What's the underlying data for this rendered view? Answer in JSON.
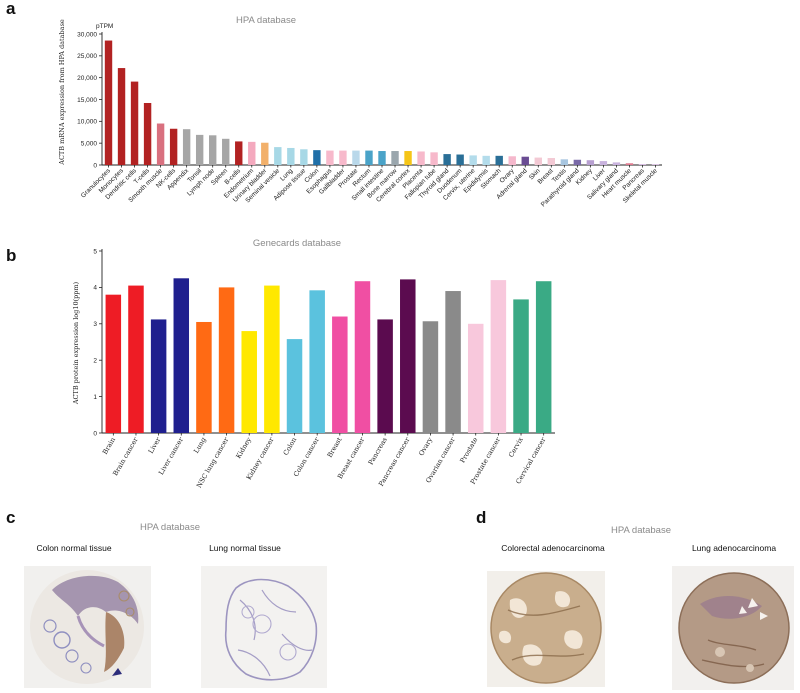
{
  "panels": {
    "a": {
      "letter": "a"
    },
    "b": {
      "letter": "b"
    },
    "c": {
      "letter": "c",
      "title": "HPA database",
      "images": [
        "Colon normal tissue",
        "Lung normal tissue"
      ]
    },
    "d": {
      "letter": "d",
      "title": "HPA database",
      "images": [
        "Colorectal adenocarcinoma",
        "Lung adenocarcinoma"
      ]
    }
  },
  "chart_data": [
    {
      "type": "bar",
      "title": "HPA database",
      "ylabel": "ACTB mRNA expression from HPA database",
      "unit": "pTPM",
      "ylim": [
        0,
        30000
      ],
      "yticks": [
        "0",
        "5,000",
        "10,000",
        "15,000",
        "20,000",
        "25,000",
        "30,000"
      ],
      "ytick_values": [
        0,
        5000,
        10000,
        15000,
        20000,
        25000,
        30000
      ],
      "categories": [
        "Granulocytes",
        "Monocytes",
        "Dendritic cells",
        "T-cells",
        "Smooth muscle",
        "NK-cells",
        "Appendix",
        "Tonsil",
        "Lymph node",
        "Spleen",
        "B-cells",
        "Endometrium",
        "Urinary bladder",
        "Seminal vesicle",
        "Lung",
        "Adipose tissue",
        "Colon",
        "Esophagus",
        "Gallbladder",
        "Prostate",
        "Rectum",
        "Small intestine",
        "Bone marrow",
        "Cerebral cortex",
        "Placenta",
        "Fallopian tube",
        "Thyroid gland",
        "Duodenum",
        "Cervix, uterine",
        "Epididymis",
        "Stomach",
        "Ovary",
        "Adrenal gland",
        "Skin",
        "Breast",
        "Testis",
        "Parathyroid gland",
        "Kidney",
        "Liver",
        "Salivary gland",
        "Heart muscle",
        "Pancreas",
        "Skeletal muscle"
      ],
      "values": [
        28500,
        22200,
        19100,
        14200,
        9500,
        8300,
        8200,
        6900,
        6800,
        6000,
        5400,
        5300,
        5100,
        4100,
        3900,
        3600,
        3400,
        3300,
        3300,
        3300,
        3300,
        3200,
        3200,
        3200,
        3100,
        2900,
        2500,
        2400,
        2200,
        2100,
        2100,
        2000,
        1900,
        1700,
        1600,
        1300,
        1200,
        1100,
        900,
        600,
        400,
        200,
        150
      ],
      "colors": [
        "#b22222",
        "#b22222",
        "#b22222",
        "#b22222",
        "#d9707f",
        "#b22222",
        "#a6a6a6",
        "#a6a6a6",
        "#a6a6a6",
        "#a6a6a6",
        "#b22222",
        "#f4a9be",
        "#f2b06a",
        "#a7d8e6",
        "#a7d8e6",
        "#a7d8e6",
        "#1f6fa8",
        "#f7b9cb",
        "#f7b9cb",
        "#b9d8ea",
        "#4aa3c8",
        "#4aa3c8",
        "#9aa6ad",
        "#f5c518",
        "#f7b9cb",
        "#f7b9cb",
        "#2a6f97",
        "#2a6f97",
        "#b3dceb",
        "#b3dceb",
        "#2a6f97",
        "#f5b8cc",
        "#6a4c93",
        "#f3c9d4",
        "#f3c9d4",
        "#a8c6e0",
        "#7a6aa8",
        "#b79fd0",
        "#c9b3de",
        "#c9b3de",
        "#e07a8f",
        "#d3b6df",
        "#c9a7d6"
      ]
    },
    {
      "type": "bar",
      "title": "Genecards database",
      "ylabel": "ACTB protein expression log10(ppm)",
      "ylim": [
        0,
        5
      ],
      "yticks": [
        "0",
        "1",
        "2",
        "3",
        "4",
        "5"
      ],
      "ytick_values": [
        0,
        1,
        2,
        3,
        4,
        5
      ],
      "categories": [
        "Brain",
        "Brain cancer",
        "Liver",
        "Liver cancer",
        "Lung",
        "NSC lung cancer",
        "Kidney",
        "Kidney cancer",
        "Colon",
        "Colon cancer",
        "Breast",
        "Breast cancer",
        "Pancreas",
        "Pancreas cancer",
        "Ovary",
        "Ovarian cancer",
        "Prostate",
        "Prostate cancer",
        "Cervix",
        "Cervical cancer"
      ],
      "values": [
        3.8,
        4.05,
        3.12,
        4.25,
        3.05,
        4.0,
        2.8,
        4.05,
        2.58,
        3.92,
        3.2,
        4.17,
        3.12,
        4.22,
        3.07,
        3.9,
        3.0,
        4.2,
        3.67,
        4.17
      ],
      "colors": [
        "#ee1c25",
        "#ee1c25",
        "#1f1f8e",
        "#1f1f8e",
        "#ff6a14",
        "#ff6a14",
        "#ffe800",
        "#ffe800",
        "#5bc2de",
        "#5bc2de",
        "#f04fa3",
        "#f04fa3",
        "#5b0b4f",
        "#5b0b4f",
        "#8a8a8a",
        "#8a8a8a",
        "#f8c8dc",
        "#f8c8dc",
        "#3aaa85",
        "#3aaa85"
      ]
    }
  ]
}
